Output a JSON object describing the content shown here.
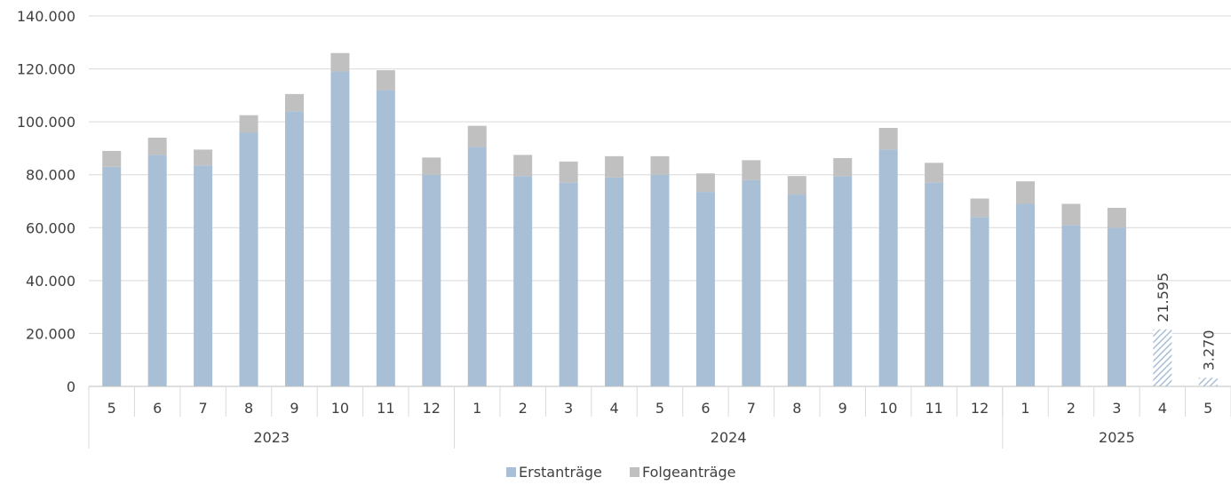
{
  "chart_data": {
    "type": "bar",
    "stacked": true,
    "ylim": [
      0,
      140000
    ],
    "y_ticks": [
      "0",
      "20.000",
      "40.000",
      "60.000",
      "80.000",
      "100.000",
      "120.000",
      "140.000"
    ],
    "y_tick_values": [
      0,
      20000,
      40000,
      60000,
      80000,
      100000,
      120000,
      140000
    ],
    "grid": true,
    "legend_position": "bottom-center",
    "categories": [
      "5",
      "6",
      "7",
      "8",
      "9",
      "10",
      "11",
      "12",
      "1",
      "2",
      "3",
      "4",
      "5",
      "6",
      "7",
      "8",
      "9",
      "10",
      "11",
      "12",
      "1",
      "2",
      "3",
      "4",
      "5"
    ],
    "groups": [
      {
        "label": "2023",
        "count": 8
      },
      {
        "label": "2024",
        "count": 12
      },
      {
        "label": "2025",
        "count": 5
      }
    ],
    "series": [
      {
        "name": "Erstanträge",
        "color": "#a9bfd6",
        "values": [
          83000,
          87500,
          83500,
          96000,
          104000,
          119000,
          112000,
          80000,
          90500,
          79500,
          77000,
          79000,
          80000,
          73500,
          78000,
          72500,
          79500,
          89500,
          77000,
          64000,
          69000,
          61000,
          60000,
          null,
          null
        ]
      },
      {
        "name": "Folgeanträge",
        "color": "#c0c0c0",
        "values": [
          6000,
          6500,
          6000,
          6500,
          6500,
          7000,
          7500,
          6500,
          8000,
          8000,
          8000,
          8000,
          7000,
          7000,
          7500,
          7000,
          6800,
          8200,
          7500,
          7000,
          8500,
          8000,
          7500,
          null,
          null
        ]
      }
    ],
    "partial_totals": [
      {
        "category_index": 23,
        "value": 21595,
        "label": "21.595"
      },
      {
        "category_index": 24,
        "value": 3270,
        "label": "3.270"
      }
    ],
    "partial_color": "#a9bfd6"
  },
  "legend": {
    "items": [
      {
        "label": "Erstanträge",
        "color": "#a9bfd6"
      },
      {
        "label": "Folgeanträge",
        "color": "#c0c0c0"
      }
    ]
  }
}
